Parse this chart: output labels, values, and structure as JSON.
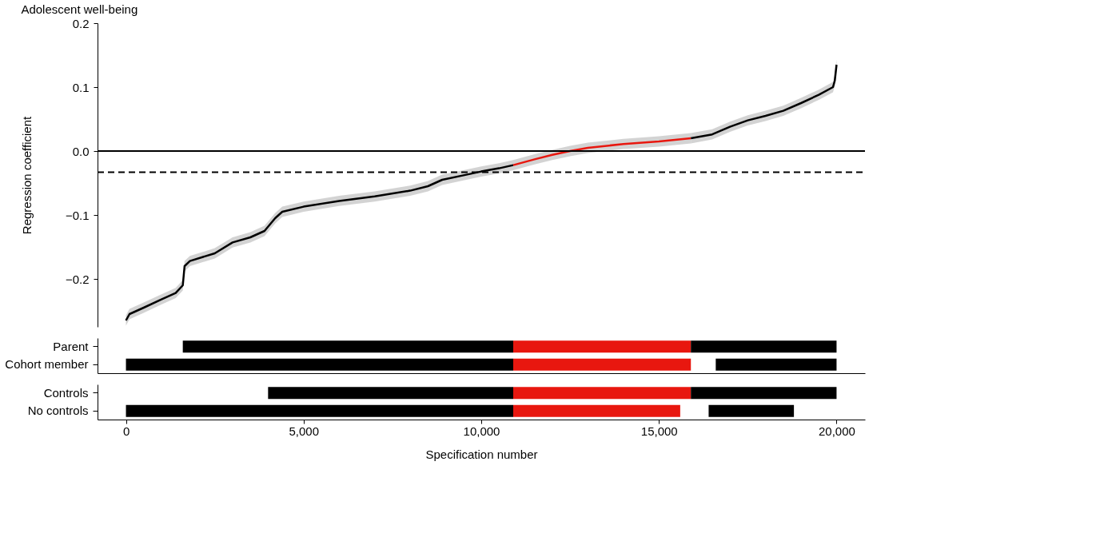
{
  "chart_data": [
    {
      "type": "line",
      "title": "Adolescent well-being",
      "ylabel": "Regression coefficient",
      "xlim": [
        -800,
        20800
      ],
      "ylim": [
        -0.275,
        0.2
      ],
      "yticks": [
        {
          "value": -0.2,
          "label": "−0.2"
        },
        {
          "value": -0.1,
          "label": "−0.1"
        },
        {
          "value": 0.0,
          "label": "0.0"
        },
        {
          "value": 0.1,
          "label": "0.1"
        },
        {
          "value": 0.2,
          "label": "0.2"
        }
      ],
      "tick_labels": "y",
      "grid": false,
      "series": [
        {
          "color": "#000000",
          "x": [
            0,
            100,
            500,
            1000,
            1400,
            1600,
            1650,
            1800,
            2500,
            3000,
            3500,
            3900,
            4200,
            4400,
            5000,
            6000,
            7000,
            8000,
            8500,
            8900,
            9500,
            10000,
            10500,
            10900
          ],
          "values": [
            -0.265,
            -0.255,
            -0.245,
            -0.232,
            -0.222,
            -0.21,
            -0.18,
            -0.172,
            -0.16,
            -0.143,
            -0.135,
            -0.125,
            -0.105,
            -0.095,
            -0.087,
            -0.078,
            -0.071,
            -0.062,
            -0.055,
            -0.045,
            -0.038,
            -0.032,
            -0.027,
            -0.022
          ],
          "lower": [
            -0.273,
            -0.263,
            -0.253,
            -0.24,
            -0.23,
            -0.218,
            -0.188,
            -0.18,
            -0.168,
            -0.151,
            -0.143,
            -0.133,
            -0.113,
            -0.103,
            -0.095,
            -0.086,
            -0.079,
            -0.07,
            -0.063,
            -0.053,
            -0.046,
            -0.04,
            -0.035,
            -0.03
          ],
          "upper": [
            -0.257,
            -0.247,
            -0.237,
            -0.224,
            -0.214,
            -0.202,
            -0.172,
            -0.164,
            -0.152,
            -0.135,
            -0.127,
            -0.117,
            -0.097,
            -0.087,
            -0.079,
            -0.07,
            -0.063,
            -0.054,
            -0.047,
            -0.037,
            -0.03,
            -0.024,
            -0.019,
            -0.014
          ]
        },
        {
          "color": "#e8170f",
          "x": [
            10900,
            11500,
            12000,
            12500,
            13000,
            14000,
            15000,
            15900
          ],
          "values": [
            -0.022,
            -0.013,
            -0.006,
            0.0,
            0.005,
            0.011,
            0.015,
            0.02
          ],
          "lower": [
            -0.03,
            -0.021,
            -0.014,
            -0.008,
            -0.003,
            0.003,
            0.007,
            0.012
          ],
          "upper": [
            -0.014,
            -0.005,
            0.002,
            0.008,
            0.013,
            0.019,
            0.023,
            0.028
          ]
        },
        {
          "color": "#000000",
          "x": [
            15900,
            16500,
            17000,
            17500,
            18000,
            18500,
            19000,
            19500,
            19900,
            19950,
            20000
          ],
          "values": [
            0.02,
            0.026,
            0.038,
            0.048,
            0.055,
            0.063,
            0.075,
            0.088,
            0.1,
            0.11,
            0.135
          ],
          "lower": [
            0.012,
            0.018,
            0.03,
            0.04,
            0.047,
            0.055,
            0.067,
            0.08,
            0.092,
            0.102,
            0.127
          ],
          "upper": [
            0.028,
            0.034,
            0.046,
            0.056,
            0.063,
            0.071,
            0.083,
            0.096,
            0.108,
            0.118,
            0.143
          ]
        }
      ],
      "ref_lines": [
        {
          "axis": "y",
          "value": 0.0,
          "line_style": "solid",
          "color": "#000000"
        },
        {
          "axis": "y",
          "value": -0.033,
          "line_style": "dashed",
          "color": "#000000"
        }
      ]
    },
    {
      "type": "bar",
      "orientation": "horizontal",
      "categories": [
        "Parent",
        "Cohort member"
      ],
      "xlim": [
        -800,
        20800
      ],
      "tick_labels": "y",
      "series": [
        {
          "color": "#000000",
          "base": [
            1600,
            0
          ],
          "values": [
            9300,
            10900
          ]
        },
        {
          "color": "#e8170f",
          "base": [
            10900,
            10900
          ],
          "values": [
            5000,
            5000
          ]
        },
        {
          "color": "#000000",
          "base": [
            15900,
            16600
          ],
          "values": [
            4100,
            3400
          ]
        }
      ]
    },
    {
      "type": "bar",
      "orientation": "horizontal",
      "categories": [
        "Controls",
        "No controls"
      ],
      "xlim": [
        -800,
        20800
      ],
      "xticks": [
        {
          "value": 0,
          "label": "0"
        },
        {
          "value": 5000,
          "label": "5,000"
        },
        {
          "value": 10000,
          "label": "10,000"
        },
        {
          "value": 15000,
          "label": "15,000"
        },
        {
          "value": 20000,
          "label": "20,000"
        }
      ],
      "xlabel": "Specification number",
      "series": [
        {
          "color": "#000000",
          "base": [
            4000,
            0
          ],
          "values": [
            6900,
            10900
          ]
        },
        {
          "color": "#e8170f",
          "base": [
            10900,
            10900
          ],
          "values": [
            5000,
            4700
          ]
        },
        {
          "color": "#000000",
          "base": [
            15900,
            16400
          ],
          "values": [
            4100,
            2400
          ]
        }
      ]
    }
  ]
}
